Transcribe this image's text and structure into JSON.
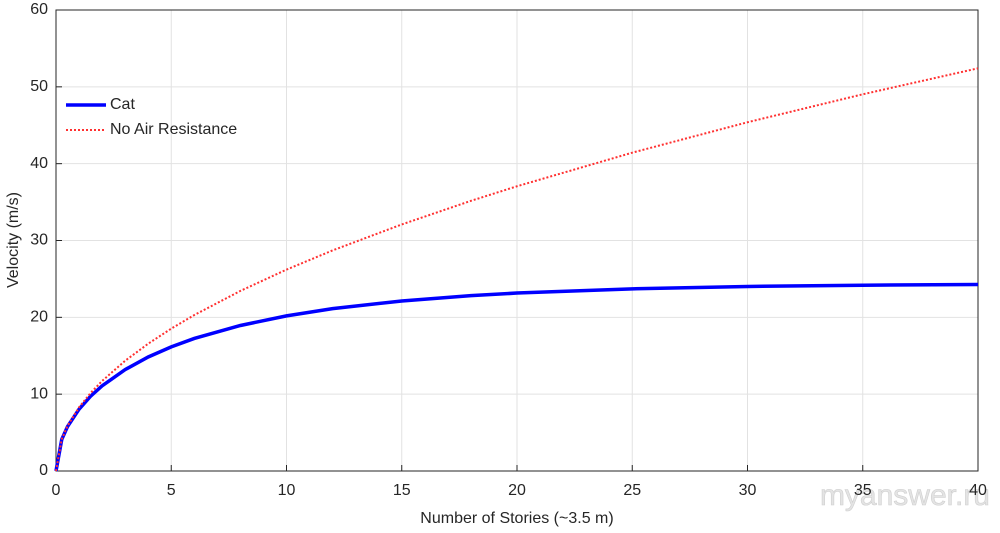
{
  "chart_data": {
    "type": "line",
    "xlabel": "Number of Stories (~3.5 m)",
    "ylabel": "Velocity (m/s)",
    "x": [
      0,
      0.25,
      0.5,
      1,
      1.5,
      2,
      3,
      4,
      5,
      6,
      8,
      10,
      12,
      15,
      18,
      20,
      25,
      30,
      35,
      40
    ],
    "series": [
      {
        "name": "Cat",
        "color": "#0000ff",
        "style": "solid",
        "values": [
          0,
          4.11,
          5.78,
          8.05,
          9.73,
          11.08,
          13.2,
          14.84,
          16.16,
          17.25,
          18.94,
          20.19,
          21.13,
          22.13,
          22.82,
          23.16,
          23.71,
          24.02,
          24.18,
          24.28
        ]
      },
      {
        "name": "No Air Resistance",
        "color": "#ff3030",
        "style": "dotted",
        "values": [
          0,
          4.14,
          5.86,
          8.29,
          10.15,
          11.72,
          14.35,
          16.57,
          18.53,
          20.3,
          23.44,
          26.21,
          28.71,
          32.09,
          35.16,
          37.06,
          41.43,
          45.39,
          49.03,
          52.41
        ]
      }
    ],
    "xlim": [
      0,
      40
    ],
    "xticks": [
      0,
      5,
      10,
      15,
      20,
      25,
      30,
      35,
      40
    ],
    "ylim": [
      0,
      60
    ],
    "yticks": [
      0,
      10,
      20,
      30,
      40,
      50,
      60
    ],
    "grid": true,
    "legend": "upper-left",
    "watermark": "myanswer.ru"
  }
}
